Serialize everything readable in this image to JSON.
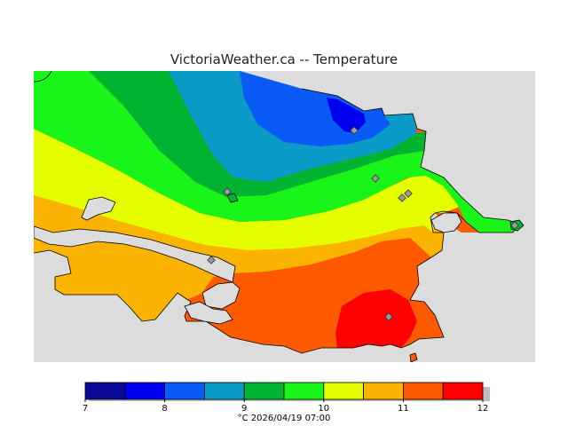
{
  "title": "VictoriaWeather.ca -- Temperature",
  "legend": {
    "unit": "°C",
    "timestamp": "2026/04/19 07:00",
    "ticks": [
      "7",
      "8",
      "9",
      "10",
      "11",
      "12"
    ],
    "bins": [
      {
        "from": 7.0,
        "to": 7.5,
        "color": "#0a0a96"
      },
      {
        "from": 7.5,
        "to": 8.0,
        "color": "#0000f0"
      },
      {
        "from": 8.0,
        "to": 8.5,
        "color": "#0a5af5"
      },
      {
        "from": 8.5,
        "to": 9.0,
        "color": "#0a9bc8"
      },
      {
        "from": 9.0,
        "to": 9.5,
        "color": "#00b432"
      },
      {
        "from": 9.5,
        "to": 10.0,
        "color": "#19f519"
      },
      {
        "from": 10.0,
        "to": 10.5,
        "color": "#e6ff00"
      },
      {
        "from": 10.5,
        "to": 11.0,
        "color": "#fab400"
      },
      {
        "from": 11.0,
        "to": 11.5,
        "color": "#ff5a00"
      },
      {
        "from": 11.5,
        "to": 12.0,
        "color": "#ff0000"
      }
    ]
  },
  "colors": {
    "water": "#dcdcdc",
    "coastline": "#000000",
    "station_marker": "#9a9a9a"
  },
  "icons": {
    "station": "diamond-marker"
  }
}
